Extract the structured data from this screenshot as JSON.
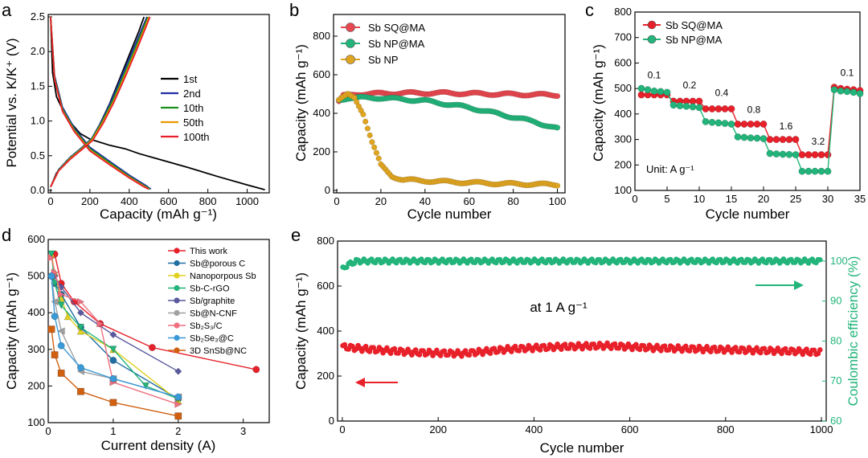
{
  "chart_data": [
    {
      "id": "a",
      "panel_letter": "a",
      "type": "line",
      "xlabel": "Capacity (mAh g⁻¹)",
      "ylabel": "Potential vs. K/K⁺ (V)",
      "xlim": [
        0,
        1100
      ],
      "ylim": [
        0,
        2.5
      ],
      "xticks": [
        0,
        200,
        400,
        600,
        800,
        1000
      ],
      "yticks": [
        0.0,
        0.5,
        1.0,
        1.5,
        2.0,
        2.5
      ],
      "legend_position": "center-right",
      "series": [
        {
          "name": "1st",
          "color": "#000000",
          "discharge": [
            [
              0,
              2.5
            ],
            [
              10,
              1.7
            ],
            [
              30,
              1.35
            ],
            [
              80,
              1.05
            ],
            [
              150,
              0.82
            ],
            [
              200,
              0.74
            ],
            [
              300,
              0.65
            ],
            [
              380,
              0.6
            ],
            [
              450,
              0.53
            ],
            [
              550,
              0.45
            ],
            [
              700,
              0.33
            ],
            [
              850,
              0.2
            ],
            [
              1000,
              0.08
            ],
            [
              1090,
              0.01
            ]
          ],
          "charge": [
            [
              0,
              0.05
            ],
            [
              30,
              0.25
            ],
            [
              80,
              0.42
            ],
            [
              150,
              0.58
            ],
            [
              200,
              0.7
            ],
            [
              250,
              0.95
            ],
            [
              300,
              1.25
            ],
            [
              350,
              1.6
            ],
            [
              400,
              1.95
            ],
            [
              450,
              2.3
            ],
            [
              475,
              2.5
            ]
          ]
        },
        {
          "name": "2nd",
          "color": "#1f2fa3",
          "discharge": [
            [
              0,
              2.5
            ],
            [
              20,
              1.65
            ],
            [
              60,
              1.2
            ],
            [
              120,
              0.9
            ],
            [
              200,
              0.62
            ],
            [
              300,
              0.42
            ],
            [
              400,
              0.22
            ],
            [
              480,
              0.08
            ],
            [
              510,
              0.02
            ]
          ],
          "charge": [
            [
              0,
              0.05
            ],
            [
              40,
              0.3
            ],
            [
              100,
              0.48
            ],
            [
              160,
              0.62
            ],
            [
              210,
              0.75
            ],
            [
              260,
              1.0
            ],
            [
              310,
              1.3
            ],
            [
              370,
              1.7
            ],
            [
              430,
              2.1
            ],
            [
              475,
              2.4
            ],
            [
              490,
              2.5
            ]
          ]
        },
        {
          "name": "10th",
          "color": "#1a8f1a",
          "discharge": [
            [
              0,
              2.5
            ],
            [
              20,
              1.62
            ],
            [
              60,
              1.17
            ],
            [
              120,
              0.88
            ],
            [
              200,
              0.6
            ],
            [
              300,
              0.4
            ],
            [
              400,
              0.2
            ],
            [
              475,
              0.07
            ],
            [
              505,
              0.02
            ]
          ],
          "charge": [
            [
              0,
              0.05
            ],
            [
              40,
              0.29
            ],
            [
              100,
              0.47
            ],
            [
              160,
              0.61
            ],
            [
              210,
              0.74
            ],
            [
              262,
              0.99
            ],
            [
              315,
              1.29
            ],
            [
              375,
              1.68
            ],
            [
              435,
              2.08
            ],
            [
              478,
              2.38
            ],
            [
              495,
              2.5
            ]
          ]
        },
        {
          "name": "50th",
          "color": "#e89a00",
          "discharge": [
            [
              0,
              2.5
            ],
            [
              20,
              1.6
            ],
            [
              60,
              1.15
            ],
            [
              120,
              0.86
            ],
            [
              200,
              0.58
            ],
            [
              300,
              0.38
            ],
            [
              400,
              0.19
            ],
            [
              470,
              0.07
            ],
            [
              500,
              0.02
            ]
          ],
          "charge": [
            [
              0,
              0.05
            ],
            [
              40,
              0.28
            ],
            [
              100,
              0.46
            ],
            [
              160,
              0.6
            ],
            [
              212,
              0.73
            ],
            [
              265,
              0.98
            ],
            [
              320,
              1.28
            ],
            [
              380,
              1.67
            ],
            [
              440,
              2.07
            ],
            [
              483,
              2.37
            ],
            [
              500,
              2.5
            ]
          ]
        },
        {
          "name": "100th",
          "color": "#e8202a",
          "discharge": [
            [
              0,
              2.5
            ],
            [
              20,
              1.6
            ],
            [
              60,
              1.14
            ],
            [
              120,
              0.85
            ],
            [
              200,
              0.57
            ],
            [
              300,
              0.37
            ],
            [
              400,
              0.18
            ],
            [
              470,
              0.06
            ],
            [
              498,
              0.02
            ]
          ],
          "charge": [
            [
              0,
              0.05
            ],
            [
              40,
              0.28
            ],
            [
              100,
              0.45
            ],
            [
              160,
              0.59
            ],
            [
              214,
              0.72
            ],
            [
              268,
              0.97
            ],
            [
              322,
              1.27
            ],
            [
              383,
              1.66
            ],
            [
              443,
              2.06
            ],
            [
              486,
              2.36
            ],
            [
              505,
              2.5
            ]
          ]
        }
      ]
    },
    {
      "id": "b",
      "panel_letter": "b",
      "type": "scatter",
      "xlabel": "Cycle number",
      "ylabel": "Capacity (mAh g⁻¹)",
      "xlim": [
        0,
        102
      ],
      "ylim": [
        0,
        900
      ],
      "xticks": [
        0,
        20,
        40,
        60,
        80,
        100
      ],
      "yticks": [
        0,
        200,
        400,
        600,
        800
      ],
      "legend_position": "top-left",
      "series": [
        {
          "name": "Sb SQ@MA",
          "color": "#e8474f",
          "knots": [
            [
              1,
              460
            ],
            [
              3,
              490
            ],
            [
              10,
              500
            ],
            [
              30,
              505
            ],
            [
              50,
              505
            ],
            [
              70,
              500
            ],
            [
              100,
              495
            ]
          ]
        },
        {
          "name": "Sb NP@MA",
          "color": "#22b47a",
          "knots": [
            [
              1,
              470
            ],
            [
              5,
              480
            ],
            [
              20,
              480
            ],
            [
              40,
              465
            ],
            [
              60,
              430
            ],
            [
              80,
              380
            ],
            [
              90,
              355
            ],
            [
              100,
              320
            ]
          ]
        },
        {
          "name": "Sb NP",
          "color": "#e0a520",
          "knots": [
            [
              1,
              470
            ],
            [
              5,
              495
            ],
            [
              8,
              480
            ],
            [
              12,
              400
            ],
            [
              16,
              250
            ],
            [
              20,
              130
            ],
            [
              25,
              75
            ],
            [
              30,
              55
            ],
            [
              50,
              45
            ],
            [
              75,
              35
            ],
            [
              100,
              30
            ]
          ]
        }
      ]
    },
    {
      "id": "c",
      "panel_letter": "c",
      "type": "scatter",
      "xlabel": "Cycle number",
      "ylabel": "Capacity (mAh g⁻¹)",
      "xlim": [
        0,
        35
      ],
      "ylim": [
        100,
        800
      ],
      "xticks": [
        0,
        5,
        10,
        15,
        20,
        25,
        30,
        35
      ],
      "yticks": [
        100,
        200,
        300,
        400,
        500,
        600,
        700,
        800
      ],
      "legend_position": "top-left",
      "unit_note": "Unit: A g⁻¹",
      "rate_labels": [
        {
          "text": "0.1",
          "x": 3,
          "y": 540
        },
        {
          "text": "0.2",
          "x": 8.5,
          "y": 500
        },
        {
          "text": "0.4",
          "x": 13.5,
          "y": 470
        },
        {
          "text": "0.8",
          "x": 18.5,
          "y": 405
        },
        {
          "text": "1.6",
          "x": 23.5,
          "y": 340
        },
        {
          "text": "3.2",
          "x": 28.5,
          "y": 280
        },
        {
          "text": "0.1",
          "x": 33,
          "y": 550
        }
      ],
      "series": [
        {
          "name": "Sb SQ@MA",
          "color": "#e8202a",
          "values": [
            475,
            475,
            475,
            475,
            475,
            450,
            450,
            450,
            450,
            450,
            420,
            420,
            420,
            420,
            420,
            360,
            360,
            360,
            360,
            360,
            300,
            300,
            300,
            300,
            300,
            240,
            240,
            240,
            240,
            240,
            505,
            500,
            497,
            495,
            492
          ]
        },
        {
          "name": "Sb NP@MA",
          "color": "#22b47a",
          "values": [
            500,
            495,
            490,
            488,
            485,
            435,
            432,
            430,
            428,
            425,
            370,
            367,
            365,
            363,
            360,
            310,
            308,
            306,
            305,
            303,
            245,
            243,
            242,
            241,
            240,
            175,
            175,
            175,
            175,
            175,
            495,
            490,
            488,
            485,
            480
          ]
        }
      ]
    },
    {
      "id": "d",
      "panel_letter": "d",
      "type": "line",
      "xlabel": "Current density (A)",
      "ylabel": "Capacity (mAh g⁻¹)",
      "xlim": [
        0,
        3.4
      ],
      "ylim": [
        100,
        600
      ],
      "xticks": [
        0,
        1,
        2,
        3
      ],
      "yticks": [
        100,
        200,
        300,
        400,
        500,
        600
      ],
      "legend_position": "top-right",
      "series": [
        {
          "name": "This work",
          "color": "#e8202a",
          "marker": "circle",
          "x": [
            0.1,
            0.2,
            0.4,
            0.8,
            1.6,
            3.2
          ],
          "y": [
            560,
            480,
            430,
            370,
            305,
            245
          ]
        },
        {
          "name": "Sb@porous C",
          "color": "#1f6fa3",
          "marker": "circle",
          "x": [
            0.05,
            0.1,
            0.2,
            0.5,
            1.0,
            2.0
          ],
          "y": [
            500,
            480,
            450,
            360,
            270,
            165
          ]
        },
        {
          "name": "Nanoporpous Sb",
          "color": "#e0d020",
          "marker": "triangle",
          "x": [
            0.05,
            0.1,
            0.2,
            0.3,
            0.5,
            1.0,
            2.0
          ],
          "y": [
            560,
            510,
            440,
            390,
            350,
            300,
            160
          ]
        },
        {
          "name": "Sb-C-rGO",
          "color": "#22b47a",
          "marker": "triangle-down",
          "x": [
            0.05,
            0.1,
            0.2,
            0.5,
            1.0,
            1.5,
            2.0
          ],
          "y": [
            560,
            480,
            420,
            360,
            300,
            200,
            165
          ]
        },
        {
          "name": "Sb/graphite",
          "color": "#5a5aa0",
          "marker": "diamond",
          "x": [
            0.1,
            0.2,
            0.5,
            1.0,
            2.0
          ],
          "y": [
            500,
            470,
            400,
            340,
            240
          ]
        },
        {
          "name": "Sb@N-CNF",
          "color": "#a0a0a0",
          "marker": "triangle-left",
          "x": [
            0.05,
            0.1,
            0.2,
            0.5,
            1.0,
            2.0
          ],
          "y": [
            500,
            430,
            350,
            240,
            220,
            170
          ]
        },
        {
          "name": "Sb₂S₃/C",
          "color": "#f07080",
          "marker": "triangle-right",
          "x": [
            0.05,
            0.1,
            0.2,
            0.5,
            0.8,
            1.0,
            2.0
          ],
          "y": [
            550,
            510,
            450,
            430,
            370,
            210,
            150
          ]
        },
        {
          "name": "Sb₂Se₃@C",
          "color": "#3a9ad8",
          "marker": "circle",
          "x": [
            0.05,
            0.1,
            0.2,
            0.5,
            1.0,
            2.0
          ],
          "y": [
            500,
            390,
            310,
            250,
            220,
            170
          ]
        },
        {
          "name": "3D SnSb@NC",
          "color": "#d06010",
          "marker": "square",
          "x": [
            0.05,
            0.1,
            0.2,
            0.5,
            1.0,
            2.0
          ],
          "y": [
            355,
            285,
            235,
            185,
            155,
            118
          ]
        }
      ]
    },
    {
      "id": "e",
      "panel_letter": "e",
      "type": "scatter",
      "xlabel": "Cycle number",
      "ylabel": "Capacity (mAh g⁻¹)",
      "y2label": "Coulombic efficiency (%)",
      "xlim": [
        -10,
        1010
      ],
      "ylim": [
        0,
        800
      ],
      "y2lim": [
        60,
        105
      ],
      "xticks": [
        0,
        200,
        400,
        600,
        800,
        1000
      ],
      "yticks": [
        0,
        200,
        400,
        600,
        800
      ],
      "y2ticks": [
        60,
        70,
        80,
        90,
        100
      ],
      "annotation": "at 1 A g⁻¹",
      "series": [
        {
          "name": "Capacity",
          "color": "#e8202a",
          "axis": "left",
          "knots": [
            [
              1,
              330
            ],
            [
              50,
              320
            ],
            [
              150,
              305
            ],
            [
              250,
              300
            ],
            [
              350,
              320
            ],
            [
              450,
              330
            ],
            [
              550,
              335
            ],
            [
              650,
              325
            ],
            [
              750,
              320
            ],
            [
              850,
              315
            ],
            [
              950,
              310
            ],
            [
              1000,
              305
            ]
          ]
        },
        {
          "name": "Coulombic efficiency",
          "color": "#22b47a",
          "axis": "right",
          "knots": [
            [
              1,
              98
            ],
            [
              10,
              99
            ],
            [
              30,
              100
            ],
            [
              1000,
              100
            ]
          ]
        }
      ]
    }
  ]
}
